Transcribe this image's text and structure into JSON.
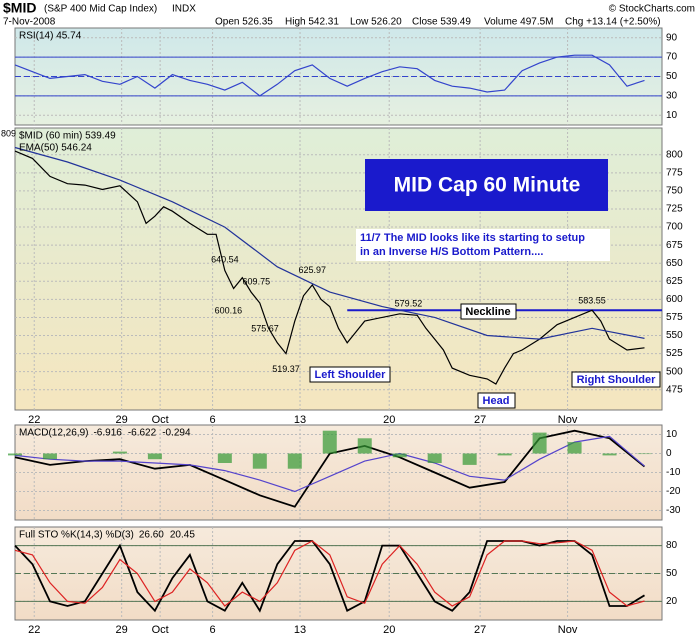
{
  "header": {
    "symbol": "$MID",
    "name": "(S&P 400 Mid Cap Index)",
    "exchange": "INDX",
    "date": "7-Nov-2008",
    "open": "Open 526.35",
    "high": "High 542.31",
    "low": "Low 526.20",
    "close": "Close 539.49",
    "volume": "Volume 497.5M",
    "change": "Chg +13.14 (+2.50%)",
    "credit": "© StockCharts.com"
  },
  "annotations": {
    "title": "MID Cap 60 Minute",
    "note_line1": "11/7  The MID looks like its starting to setup",
    "note_line2": "in an Inverse H/S Bottom Pattern....",
    "neckline": "Neckline",
    "left_shoulder": "Left Shoulder",
    "head": "Head",
    "right_shoulder": "Right Shoulder"
  },
  "chart_data": [
    {
      "type": "line",
      "xlim": [
        0,
        37
      ],
      "ylim": [
        0,
        100
      ],
      "yticks": [
        10,
        30,
        50,
        70,
        90
      ],
      "levels": [
        70,
        50,
        30
      ],
      "series": [
        {
          "name": "RSI(14) 45.74",
          "color": "#3344cc",
          "x": [
            0,
            1,
            2,
            3,
            4,
            5,
            6,
            7,
            8,
            9,
            10,
            11,
            12,
            13,
            14,
            15,
            16,
            17,
            18,
            19,
            20,
            21,
            22,
            23,
            24,
            25,
            26,
            27,
            28,
            29,
            30,
            31,
            32,
            33,
            34,
            35,
            36
          ],
          "values": [
            62,
            55,
            48,
            50,
            52,
            45,
            42,
            50,
            38,
            52,
            46,
            42,
            36,
            44,
            30,
            42,
            56,
            62,
            48,
            40,
            48,
            55,
            60,
            58,
            46,
            40,
            38,
            34,
            36,
            56,
            64,
            70,
            72,
            72,
            62,
            40,
            46
          ]
        }
      ]
    },
    {
      "type": "line",
      "xlim": [
        0,
        37
      ],
      "ylim": [
        447,
        837
      ],
      "yticks": [
        475,
        500,
        525,
        550,
        575,
        600,
        625,
        650,
        675,
        700,
        725,
        750,
        775,
        800
      ],
      "xticks": [
        {
          "value": 1.1,
          "label": "22"
        },
        {
          "value": 6.1,
          "label": "29"
        },
        {
          "value": 8.3,
          "label": "Oct"
        },
        {
          "value": 11.3,
          "label": "6"
        },
        {
          "value": 16.3,
          "label": "13"
        },
        {
          "value": 21.4,
          "label": "20"
        },
        {
          "value": 26.6,
          "label": "27"
        },
        {
          "value": 31.6,
          "label": "Nov"
        }
      ],
      "start_value": 809,
      "series": [
        {
          "name": "$MID (60 min) 539.49",
          "color": "#000000",
          "x": [
            0,
            1,
            2,
            3,
            4,
            5,
            6,
            7,
            7.5,
            8,
            8.5,
            9,
            10,
            11,
            11.5,
            12,
            12.5,
            13,
            13.5,
            14,
            14.5,
            15,
            15.5,
            16,
            16.5,
            17,
            17.5,
            18,
            18.5,
            19,
            19.5,
            20,
            21,
            22,
            23,
            23.5,
            24,
            24.5,
            25,
            26,
            27,
            27.5,
            28,
            28.5,
            29,
            30,
            31,
            32,
            33,
            33.5,
            34,
            35,
            36
          ],
          "values": [
            805,
            795,
            770,
            760,
            758,
            752,
            757,
            735,
            705,
            715,
            728,
            722,
            705,
            690,
            690,
            640,
            615,
            630,
            610,
            595,
            560,
            540,
            525,
            570,
            605,
            620,
            600,
            590,
            560,
            540,
            555,
            570,
            575,
            580,
            578,
            560,
            545,
            530,
            505,
            495,
            490,
            483,
            505,
            525,
            530,
            545,
            565,
            575,
            585,
            570,
            545,
            530,
            533
          ]
        },
        {
          "name": "EMA(50) 546.24",
          "color": "#22339a",
          "x": [
            0,
            3,
            6,
            9,
            12,
            15,
            18,
            21,
            24,
            27,
            30,
            33,
            36
          ],
          "values": [
            810,
            790,
            765,
            735,
            700,
            645,
            610,
            590,
            575,
            550,
            545,
            560,
            546
          ]
        }
      ],
      "point_labels": [
        {
          "x": 12,
          "value": 640.54
        },
        {
          "x": 12.2,
          "value": 600.16
        },
        {
          "x": 13.8,
          "value": 609.75
        },
        {
          "x": 14.3,
          "value": 575.67
        },
        {
          "x": 15.5,
          "value": 519.37
        },
        {
          "x": 17,
          "value": 625.97
        },
        {
          "x": 22.5,
          "value": 579.52
        },
        {
          "x": 33,
          "value": 583.55
        }
      ],
      "neckline": {
        "value": 585,
        "x": [
          19,
          37
        ]
      }
    },
    {
      "type": "line",
      "xlim": [
        0,
        37
      ],
      "ylim": [
        -35,
        15
      ],
      "yticks": [
        10,
        0,
        -10,
        -20,
        -30
      ],
      "label": "MACD(12,26,9)",
      "series": [
        {
          "name": "-6.916",
          "color": "#000000",
          "x": [
            0,
            2,
            4,
            6,
            8,
            10,
            12,
            14,
            16,
            18,
            20,
            22,
            24,
            26,
            28,
            30,
            32,
            34,
            36
          ],
          "values": [
            -2,
            -6,
            -4,
            -3,
            -8,
            -6,
            -14,
            -22,
            -28,
            0,
            4,
            -2,
            -10,
            -18,
            -15,
            8,
            12,
            8,
            -6.916
          ]
        },
        {
          "name": "-6.622",
          "color": "#5544cc",
          "x": [
            0,
            2,
            4,
            6,
            8,
            10,
            12,
            14,
            16,
            18,
            20,
            22,
            24,
            26,
            28,
            30,
            32,
            34,
            36
          ],
          "values": [
            -1,
            -3,
            -4,
            -4,
            -5,
            -6,
            -9,
            -14,
            -20,
            -12,
            -4,
            0,
            -5,
            -12,
            -14,
            -3,
            6,
            9,
            -6.622
          ]
        },
        {
          "name": "-0.294",
          "color": "#339933",
          "kind": "bar",
          "x": [
            0,
            2,
            4,
            6,
            8,
            10,
            12,
            14,
            16,
            18,
            20,
            22,
            24,
            26,
            28,
            30,
            32,
            34,
            36
          ],
          "values": [
            -1,
            -3,
            0,
            1,
            -3,
            0,
            -5,
            -8,
            -8,
            12,
            8,
            -2,
            -5,
            -6,
            -1,
            11,
            6,
            -1,
            -0.294
          ]
        }
      ]
    },
    {
      "type": "line",
      "xlim": [
        0,
        37
      ],
      "ylim": [
        0,
        100
      ],
      "yticks": [
        20,
        50,
        80
      ],
      "levels": [
        80,
        50,
        20
      ],
      "label": "Full STO %K(14,3) %D(3)",
      "xticks": [
        {
          "value": 1.1,
          "label": "22"
        },
        {
          "value": 6.1,
          "label": "29"
        },
        {
          "value": 8.3,
          "label": "Oct"
        },
        {
          "value": 11.3,
          "label": "6"
        },
        {
          "value": 16.3,
          "label": "13"
        },
        {
          "value": 21.4,
          "label": "20"
        },
        {
          "value": 26.6,
          "label": "27"
        },
        {
          "value": 31.6,
          "label": "Nov"
        }
      ],
      "series": [
        {
          "name": "26.60",
          "color": "#000000",
          "x": [
            0,
            1,
            2,
            3,
            4,
            5,
            6,
            7,
            8,
            9,
            10,
            11,
            12,
            13,
            14,
            15,
            16,
            17,
            18,
            19,
            20,
            21,
            22,
            23,
            24,
            25,
            26,
            27,
            28,
            29,
            30,
            31,
            32,
            33,
            34,
            35,
            36
          ],
          "values": [
            80,
            60,
            20,
            15,
            20,
            50,
            80,
            30,
            10,
            45,
            70,
            20,
            10,
            40,
            10,
            60,
            85,
            85,
            60,
            10,
            20,
            80,
            80,
            50,
            20,
            10,
            30,
            85,
            85,
            85,
            80,
            85,
            85,
            70,
            15,
            15,
            26.6
          ]
        },
        {
          "name": "20.45",
          "color": "#dd2222",
          "x": [
            0,
            1,
            2,
            3,
            4,
            5,
            6,
            7,
            8,
            9,
            10,
            11,
            12,
            13,
            14,
            15,
            16,
            17,
            18,
            19,
            20,
            21,
            22,
            23,
            24,
            25,
            26,
            27,
            28,
            29,
            30,
            31,
            32,
            33,
            34,
            35,
            36
          ],
          "values": [
            75,
            70,
            40,
            20,
            18,
            35,
            65,
            50,
            20,
            30,
            55,
            40,
            15,
            30,
            20,
            40,
            75,
            85,
            70,
            25,
            18,
            60,
            80,
            60,
            30,
            15,
            25,
            70,
            85,
            85,
            82,
            83,
            85,
            75,
            30,
            15,
            20.45
          ]
        }
      ]
    }
  ]
}
